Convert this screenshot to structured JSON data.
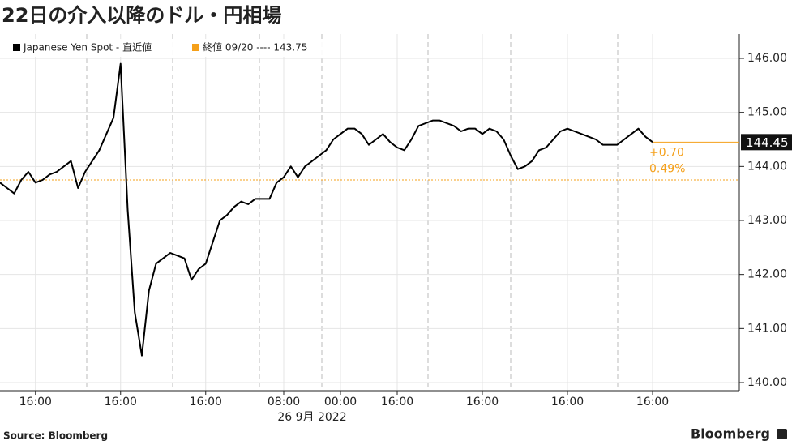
{
  "chart_data": {
    "type": "line",
    "title": "22日の介入以降のドル・円相場",
    "categories": [
      null,
      null,
      null,
      null,
      null,
      "16:00",
      null,
      null,
      null,
      null,
      null,
      null,
      null,
      null,
      null,
      null,
      null,
      "16:00",
      null,
      null,
      null,
      null,
      null,
      null,
      null,
      null,
      null,
      null,
      null,
      "16:00",
      null,
      null,
      null,
      null,
      null,
      null,
      null,
      null,
      null,
      null,
      "08:00",
      null,
      null,
      null,
      null,
      null,
      null,
      null,
      "00:00",
      null,
      null,
      null,
      null,
      null,
      null,
      null,
      "16:00",
      null,
      null,
      null,
      null,
      null,
      null,
      null,
      null,
      null,
      null,
      null,
      "16:00",
      null,
      null,
      null,
      null,
      null,
      null,
      null,
      null,
      null,
      null,
      null,
      "16:00",
      null,
      null,
      null,
      null,
      null,
      null,
      null,
      null,
      null,
      null,
      null,
      "16:00"
    ],
    "date_label": "26 9月 2022",
    "series": [
      {
        "name": "Japanese Yen Spot - 直近値",
        "color": "#000000",
        "values": [
          143.7,
          143.6,
          143.5,
          143.75,
          143.9,
          143.7,
          143.75,
          143.85,
          143.9,
          144.0,
          144.1,
          143.6,
          143.9,
          144.1,
          144.3,
          144.6,
          144.9,
          145.9,
          143.2,
          141.3,
          140.5,
          141.7,
          142.2,
          142.3,
          142.4,
          142.35,
          142.3,
          141.9,
          142.1,
          142.2,
          142.6,
          143.0,
          143.1,
          143.25,
          143.35,
          143.3,
          143.4,
          143.4,
          143.4,
          143.7,
          143.8,
          144.0,
          143.8,
          144.0,
          144.1,
          144.2,
          144.3,
          144.5,
          144.6,
          144.7,
          144.7,
          144.6,
          144.4,
          144.5,
          144.6,
          144.45,
          144.35,
          144.3,
          144.5,
          144.75,
          144.8,
          144.85,
          144.85,
          144.8,
          144.75,
          144.65,
          144.7,
          144.7,
          144.6,
          144.7,
          144.65,
          144.5,
          144.2,
          143.95,
          144.0,
          144.1,
          144.3,
          144.35,
          144.5,
          144.65,
          144.7,
          144.65,
          144.6,
          144.55,
          144.5,
          144.4,
          144.4,
          144.4,
          144.5,
          144.6,
          144.7,
          144.55,
          144.45
        ]
      }
    ],
    "reference": {
      "label": "終値 09/20 ---- 143.75",
      "value": 143.75,
      "color": "#f5a01a"
    },
    "annotations": [
      "+0.70",
      "0.49%"
    ],
    "ylim": [
      139.85,
      146.45
    ],
    "yticks": [
      {
        "value": 140,
        "label": "140.00"
      },
      {
        "value": 141,
        "label": "141.00"
      },
      {
        "value": 142,
        "label": "142.00"
      },
      {
        "value": 143,
        "label": "143.00"
      },
      {
        "value": 144,
        "label": "144.00"
      },
      {
        "value": 145,
        "label": "145.00"
      },
      {
        "value": 146,
        "label": "146.00"
      }
    ],
    "grid": true,
    "source": "Source:  Bloomberg",
    "brand": "Bloomberg"
  }
}
